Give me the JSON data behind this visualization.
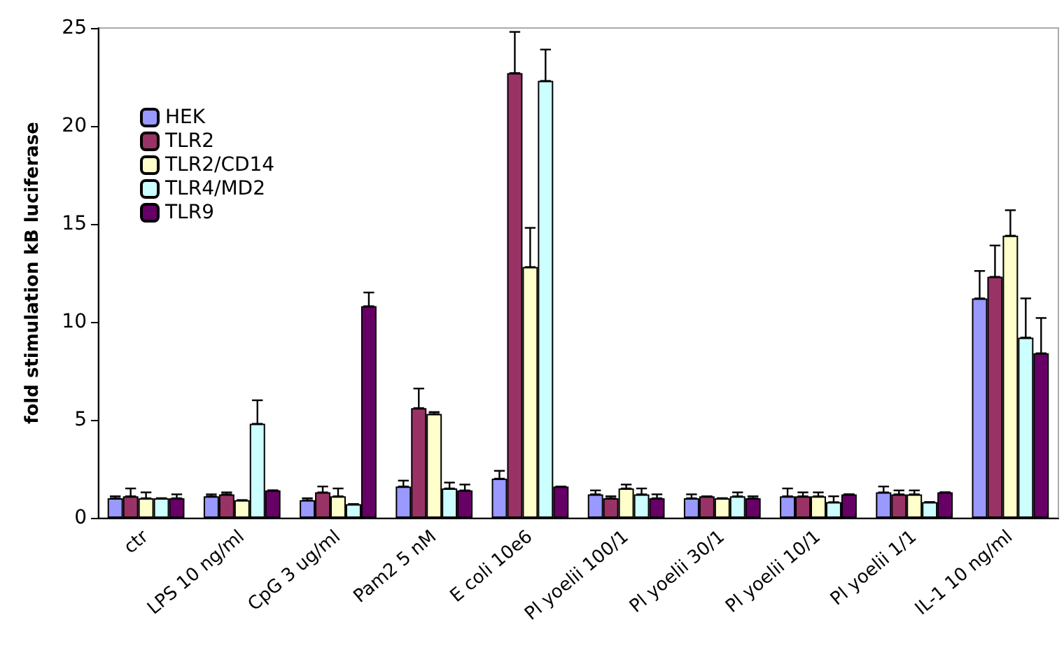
{
  "chart_data": {
    "type": "bar",
    "ylabel": "fold stimulation kB luciferase",
    "categories": [
      "ctr",
      "LPS 10 ng/ml",
      "CpG 3 ug/ml",
      "Pam2 5 nM",
      "E coli 10e6",
      "Pl yoelii 100/1",
      "Pl yoelii 30/1",
      "Pl yoelii 10/1",
      "Pl yoelii 1/1",
      "IL-1 10 ng/ml"
    ],
    "series": [
      {
        "name": "HEK",
        "color": "#9999ff",
        "values": [
          1.0,
          1.1,
          0.9,
          1.6,
          2.0,
          1.2,
          1.0,
          1.1,
          1.3,
          11.2
        ],
        "errors": [
          [
            1.0,
            1.1
          ],
          [
            1.1,
            1.2
          ],
          [
            0.9,
            1.0
          ],
          [
            1.6,
            1.9
          ],
          [
            2.0,
            2.4
          ],
          [
            1.2,
            1.4
          ],
          [
            1.0,
            1.2
          ],
          [
            1.1,
            1.5
          ],
          [
            1.3,
            1.6
          ],
          [
            11.2,
            12.6
          ]
        ]
      },
      {
        "name": "TLR2",
        "color": "#993366",
        "values": [
          1.1,
          1.2,
          1.3,
          5.6,
          22.7,
          1.0,
          1.1,
          1.1,
          1.2,
          12.3
        ],
        "errors": [
          [
            1.1,
            1.5
          ],
          [
            1.2,
            1.3
          ],
          [
            1.3,
            1.6
          ],
          [
            5.6,
            6.6
          ],
          [
            22.7,
            24.8
          ],
          [
            1.0,
            1.1
          ],
          [
            1.1,
            1.1
          ],
          [
            1.1,
            1.3
          ],
          [
            1.2,
            1.4
          ],
          [
            12.3,
            13.9
          ]
        ]
      },
      {
        "name": "TLR2/CD14",
        "color": "#ffffcc",
        "values": [
          1.0,
          0.9,
          1.1,
          5.3,
          12.8,
          1.5,
          1.0,
          1.1,
          1.2,
          14.4
        ],
        "errors": [
          [
            1.0,
            1.3
          ],
          [
            0.9,
            0.9
          ],
          [
            1.1,
            1.5
          ],
          [
            5.3,
            5.4
          ],
          [
            12.8,
            14.8
          ],
          [
            1.5,
            1.7
          ],
          [
            1.0,
            1.0
          ],
          [
            1.1,
            1.3
          ],
          [
            1.2,
            1.4
          ],
          [
            14.4,
            15.7
          ]
        ]
      },
      {
        "name": "TLR4/MD2",
        "color": "#ccffff",
        "values": [
          1.0,
          4.8,
          0.7,
          1.5,
          22.3,
          1.2,
          1.1,
          0.8,
          0.8,
          9.2
        ],
        "errors": [
          [
            1.0,
            1.0
          ],
          [
            4.8,
            6.0
          ],
          [
            0.7,
            0.7
          ],
          [
            1.5,
            1.8
          ],
          [
            22.3,
            23.9
          ],
          [
            1.2,
            1.5
          ],
          [
            1.1,
            1.3
          ],
          [
            0.8,
            1.1
          ],
          [
            0.8,
            0.8
          ],
          [
            9.2,
            11.2
          ]
        ]
      },
      {
        "name": "TLR9",
        "color": "#660066",
        "values": [
          1.0,
          1.4,
          10.8,
          1.4,
          1.6,
          1.0,
          1.0,
          1.2,
          1.3,
          8.4
        ],
        "errors": [
          [
            1.0,
            1.2
          ],
          [
            1.4,
            1.4
          ],
          [
            10.8,
            11.5
          ],
          [
            1.4,
            1.7
          ],
          [
            1.6,
            1.6
          ],
          [
            1.0,
            1.2
          ],
          [
            1.0,
            1.1
          ],
          [
            1.2,
            1.2
          ],
          [
            1.3,
            1.3
          ],
          [
            8.4,
            10.2
          ]
        ]
      }
    ],
    "ylim": [
      0,
      25
    ],
    "yticks": [
      0,
      5,
      10,
      15,
      20,
      25
    ],
    "grid": false,
    "legend": "top left"
  }
}
